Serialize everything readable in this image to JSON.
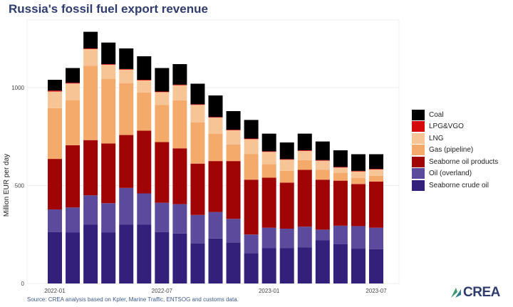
{
  "chart_data": {
    "type": "bar",
    "stacked": true,
    "title": "Russia's fossil fuel export revenue",
    "xlabel": "",
    "ylabel": "Million EUR per day",
    "ylim": [
      0,
      1300
    ],
    "yticks": [
      0,
      500,
      1000
    ],
    "xtick_labels": [
      "2022-01",
      "2022-07",
      "2023-01",
      "2023-07"
    ],
    "categories": [
      "2022-01",
      "2022-02",
      "2022-03",
      "2022-04",
      "2022-05",
      "2022-06",
      "2022-07",
      "2022-08",
      "2022-09",
      "2022-10",
      "2022-11",
      "2022-12",
      "2023-01",
      "2023-02",
      "2023-03",
      "2023-04",
      "2023-05",
      "2023-06",
      "2023-07"
    ],
    "grid": true,
    "legend_position": "right",
    "series": [
      {
        "name": "Seaborne crude oil",
        "color": "#33207a",
        "values": [
          262,
          260,
          300,
          260,
          300,
          300,
          262,
          255,
          205,
          230,
          210,
          155,
          180,
          180,
          185,
          220,
          200,
          178,
          175
        ]
      },
      {
        "name": "Oil (overland)",
        "color": "#5c4b9c",
        "values": [
          116,
          128,
          150,
          150,
          188,
          160,
          150,
          150,
          145,
          135,
          120,
          95,
          105,
          100,
          105,
          55,
          95,
          115,
          110
        ]
      },
      {
        "name": "Seaborne oil products",
        "color": "#a10404",
        "values": [
          258,
          318,
          282,
          305,
          270,
          320,
          310,
          285,
          262,
          260,
          295,
          280,
          255,
          235,
          290,
          255,
          230,
          215,
          235
        ]
      },
      {
        "name": "Gas (pipeline)",
        "color": "#f3aa6a",
        "values": [
          259,
          230,
          380,
          330,
          265,
          195,
          190,
          245,
          210,
          140,
          85,
          130,
          70,
          60,
          50,
          50,
          40,
          30,
          30
        ]
      },
      {
        "name": "LNG",
        "color": "#f7c495",
        "values": [
          85,
          85,
          85,
          72,
          69,
          62,
          65,
          77,
          90,
          82,
          72,
          77,
          62,
          57,
          47,
          47,
          27,
          34,
          32
        ]
      },
      {
        "name": "LPG&VGO",
        "color": "#d40a0a",
        "values": [
          5,
          4,
          3,
          3,
          3,
          3,
          3,
          3,
          3,
          3,
          3,
          3,
          3,
          3,
          3,
          3,
          3,
          3,
          3
        ]
      },
      {
        "name": "Coal",
        "color": "#000000",
        "values": [
          55,
          75,
          85,
          110,
          105,
          120,
          120,
          105,
          105,
          110,
          95,
          95,
          90,
          85,
          85,
          95,
          85,
          85,
          75
        ]
      }
    ],
    "legend_order": [
      "Coal",
      "LPG&VGO",
      "LNG",
      "Gas (pipeline)",
      "Seaborne oil products",
      "Oil (overland)",
      "Seaborne crude oil"
    ]
  },
  "source": "Source: CREA analysis based on Kpler, Marine Traffic, ENTSOG and customs data.",
  "logo": {
    "text": "CREA",
    "color": "#2e3c6e",
    "accent": "#3a9a6a"
  }
}
